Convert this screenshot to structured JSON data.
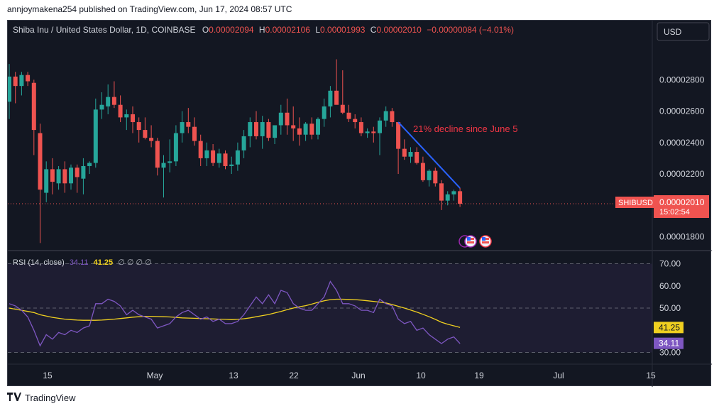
{
  "publisher_line": "annjoymakena254 published on TradingView.com, Jun 17, 2024 08:57 UTC",
  "symbol_header": {
    "name": "Shiba Inu / United States Dollar, 1D, COINBASE",
    "o_label": "O",
    "o": "0.00002094",
    "h_label": "H",
    "h": "0.00002106",
    "l_label": "L",
    "l": "0.00001993",
    "c_label": "C",
    "c": "0.00002010",
    "change": "−0.00000084 (−4.01%)"
  },
  "currency_button": "USD",
  "price_tag": {
    "symbol": "SHIBUSD",
    "price": "0.00002010",
    "countdown": "15:02:54"
  },
  "annotation": "21% decline since June 5",
  "rsi_legend": {
    "title": "RSI (14, close)",
    "rsi": "34.11",
    "ma": "41.25",
    "extras": "∅ ∅ ∅ ∅"
  },
  "rsi_badges": {
    "ma": "41.25",
    "rsi": "34.11"
  },
  "brand": "TradingView",
  "colors": {
    "background": "#131722",
    "up": "#26a69a",
    "down": "#ef5350",
    "rsi_line": "#7e57c2",
    "rsi_ma": "#f0d020",
    "trendline": "#2962ff",
    "annotation_text": "#f23645",
    "axis_text": "#d1d4dc"
  },
  "chart_data": [
    {
      "type": "candlestick",
      "x_ticks": [
        "15",
        "May",
        "13",
        "22",
        "Jun",
        "10",
        "19",
        "Jul",
        "15"
      ],
      "y_ticks": [
        "0.00001800",
        "0.00002200",
        "0.00002400",
        "0.00002600",
        "0.00002800"
      ],
      "ylim": [
        1.73e-05,
        3.05e-05
      ],
      "candles": [
        {
          "o": 2.66e-05,
          "h": 2.9e-05,
          "l": 2.55e-05,
          "c": 2.82e-05
        },
        {
          "o": 2.82e-05,
          "h": 2.85e-05,
          "l": 2.65e-05,
          "c": 2.76e-05
        },
        {
          "o": 2.76e-05,
          "h": 2.85e-05,
          "l": 2.7e-05,
          "c": 2.83e-05
        },
        {
          "o": 2.83e-05,
          "h": 2.85e-05,
          "l": 2.76e-05,
          "c": 2.79e-05
        },
        {
          "o": 2.78e-05,
          "h": 2.8e-05,
          "l": 2.32e-05,
          "c": 2.48e-05
        },
        {
          "o": 2.46e-05,
          "h": 2.52e-05,
          "l": 1.76e-05,
          "c": 2.1e-05
        },
        {
          "o": 2.08e-05,
          "h": 2.28e-05,
          "l": 2.02e-05,
          "c": 2.23e-05
        },
        {
          "o": 2.23e-05,
          "h": 2.3e-05,
          "l": 2.07e-05,
          "c": 2.15e-05
        },
        {
          "o": 2.14e-05,
          "h": 2.25e-05,
          "l": 2.1e-05,
          "c": 2.23e-05
        },
        {
          "o": 2.23e-05,
          "h": 2.28e-05,
          "l": 2.08e-05,
          "c": 2.14e-05
        },
        {
          "o": 2.14e-05,
          "h": 2.26e-05,
          "l": 2.1e-05,
          "c": 2.24e-05
        },
        {
          "o": 2.24e-05,
          "h": 2.26e-05,
          "l": 2.08e-05,
          "c": 2.18e-05
        },
        {
          "o": 2.17e-05,
          "h": 2.3e-05,
          "l": 2.07e-05,
          "c": 2.25e-05
        },
        {
          "o": 2.25e-05,
          "h": 2.28e-05,
          "l": 2.2e-05,
          "c": 2.27e-05
        },
        {
          "o": 2.27e-05,
          "h": 2.68e-05,
          "l": 2.24e-05,
          "c": 2.61e-05
        },
        {
          "o": 2.61e-05,
          "h": 2.72e-05,
          "l": 2.55e-05,
          "c": 2.64e-05
        },
        {
          "o": 2.63e-05,
          "h": 2.77e-05,
          "l": 2.58e-05,
          "c": 2.69e-05
        },
        {
          "o": 2.69e-05,
          "h": 2.79e-05,
          "l": 2.62e-05,
          "c": 2.64e-05
        },
        {
          "o": 2.64e-05,
          "h": 2.7e-05,
          "l": 2.53e-05,
          "c": 2.56e-05
        },
        {
          "o": 2.56e-05,
          "h": 2.61e-05,
          "l": 2.48e-05,
          "c": 2.58e-05
        },
        {
          "o": 2.58e-05,
          "h": 2.63e-05,
          "l": 2.46e-05,
          "c": 2.53e-05
        },
        {
          "o": 2.53e-05,
          "h": 2.56e-05,
          "l": 2.4e-05,
          "c": 2.48e-05
        },
        {
          "o": 2.48e-05,
          "h": 2.56e-05,
          "l": 2.42e-05,
          "c": 2.43e-05
        },
        {
          "o": 2.43e-05,
          "h": 2.51e-05,
          "l": 2.37e-05,
          "c": 2.41e-05
        },
        {
          "o": 2.41e-05,
          "h": 2.43e-05,
          "l": 2.19e-05,
          "c": 2.24e-05
        },
        {
          "o": 2.24e-05,
          "h": 2.32e-05,
          "l": 2.05e-05,
          "c": 2.27e-05
        },
        {
          "o": 2.27e-05,
          "h": 2.42e-05,
          "l": 2.21e-05,
          "c": 2.28e-05
        },
        {
          "o": 2.28e-05,
          "h": 2.51e-05,
          "l": 2.25e-05,
          "c": 2.46e-05
        },
        {
          "o": 2.46e-05,
          "h": 2.6e-05,
          "l": 2.4e-05,
          "c": 2.53e-05
        },
        {
          "o": 2.53e-05,
          "h": 2.62e-05,
          "l": 2.46e-05,
          "c": 2.5e-05
        },
        {
          "o": 2.5e-05,
          "h": 2.56e-05,
          "l": 2.38e-05,
          "c": 2.41e-05
        },
        {
          "o": 2.41e-05,
          "h": 2.45e-05,
          "l": 2.25e-05,
          "c": 2.3e-05
        },
        {
          "o": 2.3e-05,
          "h": 2.4e-05,
          "l": 2.25e-05,
          "c": 2.35e-05
        },
        {
          "o": 2.35e-05,
          "h": 2.39e-05,
          "l": 2.25e-05,
          "c": 2.27e-05
        },
        {
          "o": 2.27e-05,
          "h": 2.36e-05,
          "l": 2.24e-05,
          "c": 2.33e-05
        },
        {
          "o": 2.33e-05,
          "h": 2.35e-05,
          "l": 2.23e-05,
          "c": 2.25e-05
        },
        {
          "o": 2.25e-05,
          "h": 2.31e-05,
          "l": 2.2e-05,
          "c": 2.26e-05
        },
        {
          "o": 2.26e-05,
          "h": 2.4e-05,
          "l": 2.22e-05,
          "c": 2.35e-05
        },
        {
          "o": 2.35e-05,
          "h": 2.48e-05,
          "l": 2.3e-05,
          "c": 2.44e-05
        },
        {
          "o": 2.44e-05,
          "h": 2.56e-05,
          "l": 2.37e-05,
          "c": 2.53e-05
        },
        {
          "o": 2.53e-05,
          "h": 2.6e-05,
          "l": 2.42e-05,
          "c": 2.44e-05
        },
        {
          "o": 2.44e-05,
          "h": 2.57e-05,
          "l": 2.36e-05,
          "c": 2.53e-05
        },
        {
          "o": 2.53e-05,
          "h": 2.55e-05,
          "l": 2.41e-05,
          "c": 2.43e-05
        },
        {
          "o": 2.43e-05,
          "h": 2.5e-05,
          "l": 2.39e-05,
          "c": 2.51e-05
        },
        {
          "o": 2.51e-05,
          "h": 2.64e-05,
          "l": 2.45e-05,
          "c": 2.59e-05
        },
        {
          "o": 2.59e-05,
          "h": 2.68e-05,
          "l": 2.45e-05,
          "c": 2.51e-05
        },
        {
          "o": 2.51e-05,
          "h": 2.63e-05,
          "l": 2.41e-05,
          "c": 2.49e-05
        },
        {
          "o": 2.49e-05,
          "h": 2.56e-05,
          "l": 2.38e-05,
          "c": 2.45e-05
        },
        {
          "o": 2.45e-05,
          "h": 2.53e-05,
          "l": 2.41e-05,
          "c": 2.52e-05
        },
        {
          "o": 2.52e-05,
          "h": 2.56e-05,
          "l": 2.42e-05,
          "c": 2.45e-05
        },
        {
          "o": 2.45e-05,
          "h": 2.56e-05,
          "l": 2.42e-05,
          "c": 2.55e-05
        },
        {
          "o": 2.55e-05,
          "h": 2.68e-05,
          "l": 2.5e-05,
          "c": 2.63e-05
        },
        {
          "o": 2.63e-05,
          "h": 2.76e-05,
          "l": 2.56e-05,
          "c": 2.73e-05
        },
        {
          "o": 2.73e-05,
          "h": 2.93e-05,
          "l": 2.65e-05,
          "c": 2.64e-05
        },
        {
          "o": 2.64e-05,
          "h": 2.86e-05,
          "l": 2.58e-05,
          "c": 2.59e-05
        },
        {
          "o": 2.59e-05,
          "h": 2.64e-05,
          "l": 2.53e-05,
          "c": 2.55e-05
        },
        {
          "o": 2.55e-05,
          "h": 2.58e-05,
          "l": 2.49e-05,
          "c": 2.53e-05
        },
        {
          "o": 2.53e-05,
          "h": 2.56e-05,
          "l": 2.44e-05,
          "c": 2.46e-05
        },
        {
          "o": 2.46e-05,
          "h": 2.49e-05,
          "l": 2.43e-05,
          "c": 2.47e-05
        },
        {
          "o": 2.47e-05,
          "h": 2.5e-05,
          "l": 2.4e-05,
          "c": 2.46e-05
        },
        {
          "o": 2.46e-05,
          "h": 2.56e-05,
          "l": 2.32e-05,
          "c": 2.54e-05
        },
        {
          "o": 2.54e-05,
          "h": 2.63e-05,
          "l": 2.5e-05,
          "c": 2.6e-05
        },
        {
          "o": 2.6e-05,
          "h": 2.62e-05,
          "l": 2.5e-05,
          "c": 2.53e-05
        },
        {
          "o": 2.53e-05,
          "h": 2.53e-05,
          "l": 2.2e-05,
          "c": 2.36e-05
        },
        {
          "o": 2.36e-05,
          "h": 2.42e-05,
          "l": 2.29e-05,
          "c": 2.31e-05
        },
        {
          "o": 2.31e-05,
          "h": 2.37e-05,
          "l": 2.27e-05,
          "c": 2.34e-05
        },
        {
          "o": 2.34e-05,
          "h": 2.37e-05,
          "l": 2.26e-05,
          "c": 2.27e-05
        },
        {
          "o": 2.27e-05,
          "h": 2.31e-05,
          "l": 2.15e-05,
          "c": 2.16e-05
        },
        {
          "o": 2.16e-05,
          "h": 2.23e-05,
          "l": 2.12e-05,
          "c": 2.22e-05
        },
        {
          "o": 2.22e-05,
          "h": 2.24e-05,
          "l": 2.12e-05,
          "c": 2.14e-05
        },
        {
          "o": 2.14e-05,
          "h": 2.16e-05,
          "l": 1.97e-05,
          "c": 2.03e-05
        },
        {
          "o": 2.03e-05,
          "h": 2.09e-05,
          "l": 2e-05,
          "c": 2.07e-05
        },
        {
          "o": 2.07e-05,
          "h": 2.1e-05,
          "l": 2.03e-05,
          "c": 2.09e-05
        },
        {
          "o": 2.09e-05,
          "h": 2.11e-05,
          "l": 1.99e-05,
          "c": 2.01e-05
        }
      ],
      "last_price": 2.01e-05,
      "trendline_label": "21% decline since June 5"
    },
    {
      "type": "line",
      "name": "RSI (14, close)",
      "y_ticks": [
        "30.00",
        "50.00",
        "60.00",
        "70.00"
      ],
      "ylim": [
        26,
        74
      ],
      "levels": [
        30,
        50,
        70
      ],
      "series": [
        {
          "name": "RSI",
          "values": [
            52,
            51,
            49,
            46,
            40,
            33,
            38,
            36,
            39,
            38,
            40,
            39,
            41,
            42,
            52,
            52,
            54,
            53,
            51,
            47,
            49,
            47,
            46,
            45,
            41,
            42,
            43,
            46,
            48,
            49,
            47,
            45,
            46,
            44,
            45,
            43,
            43,
            44,
            47,
            51,
            55,
            52,
            56,
            52,
            58,
            57,
            52,
            50,
            49,
            49,
            52,
            55,
            62,
            58,
            52,
            52,
            51,
            49,
            49,
            48,
            54,
            52,
            51,
            45,
            43,
            44,
            40,
            41,
            38,
            36,
            34,
            36,
            37,
            34
          ]
        },
        {
          "name": "MA",
          "values": [
            50,
            49.5,
            49,
            48.5,
            48,
            47,
            46.4,
            45.8,
            45.4,
            45,
            44.8,
            44.6,
            44.5,
            44.5,
            44.5,
            44.6,
            44.8,
            45,
            45.3,
            45.6,
            45.9,
            46.1,
            46.3,
            46.3,
            46.2,
            46.1,
            46,
            45.8,
            45.6,
            45.5,
            45.4,
            45.3,
            45.2,
            45.1,
            45,
            44.9,
            44.8,
            44.9,
            45.2,
            45.6,
            46.1,
            46.6,
            47.1,
            47.8,
            48.5,
            49.3,
            50,
            50.6,
            51.1,
            51.8,
            52.6,
            53.3,
            53.8,
            54,
            54,
            53.9,
            53.8,
            53.6,
            53.3,
            53,
            52.7,
            52.3,
            51.6,
            50.8,
            50,
            49.1,
            48.2,
            47.2,
            46.1,
            44.9,
            43.6,
            42.7,
            42,
            41.25
          ]
        }
      ]
    }
  ]
}
